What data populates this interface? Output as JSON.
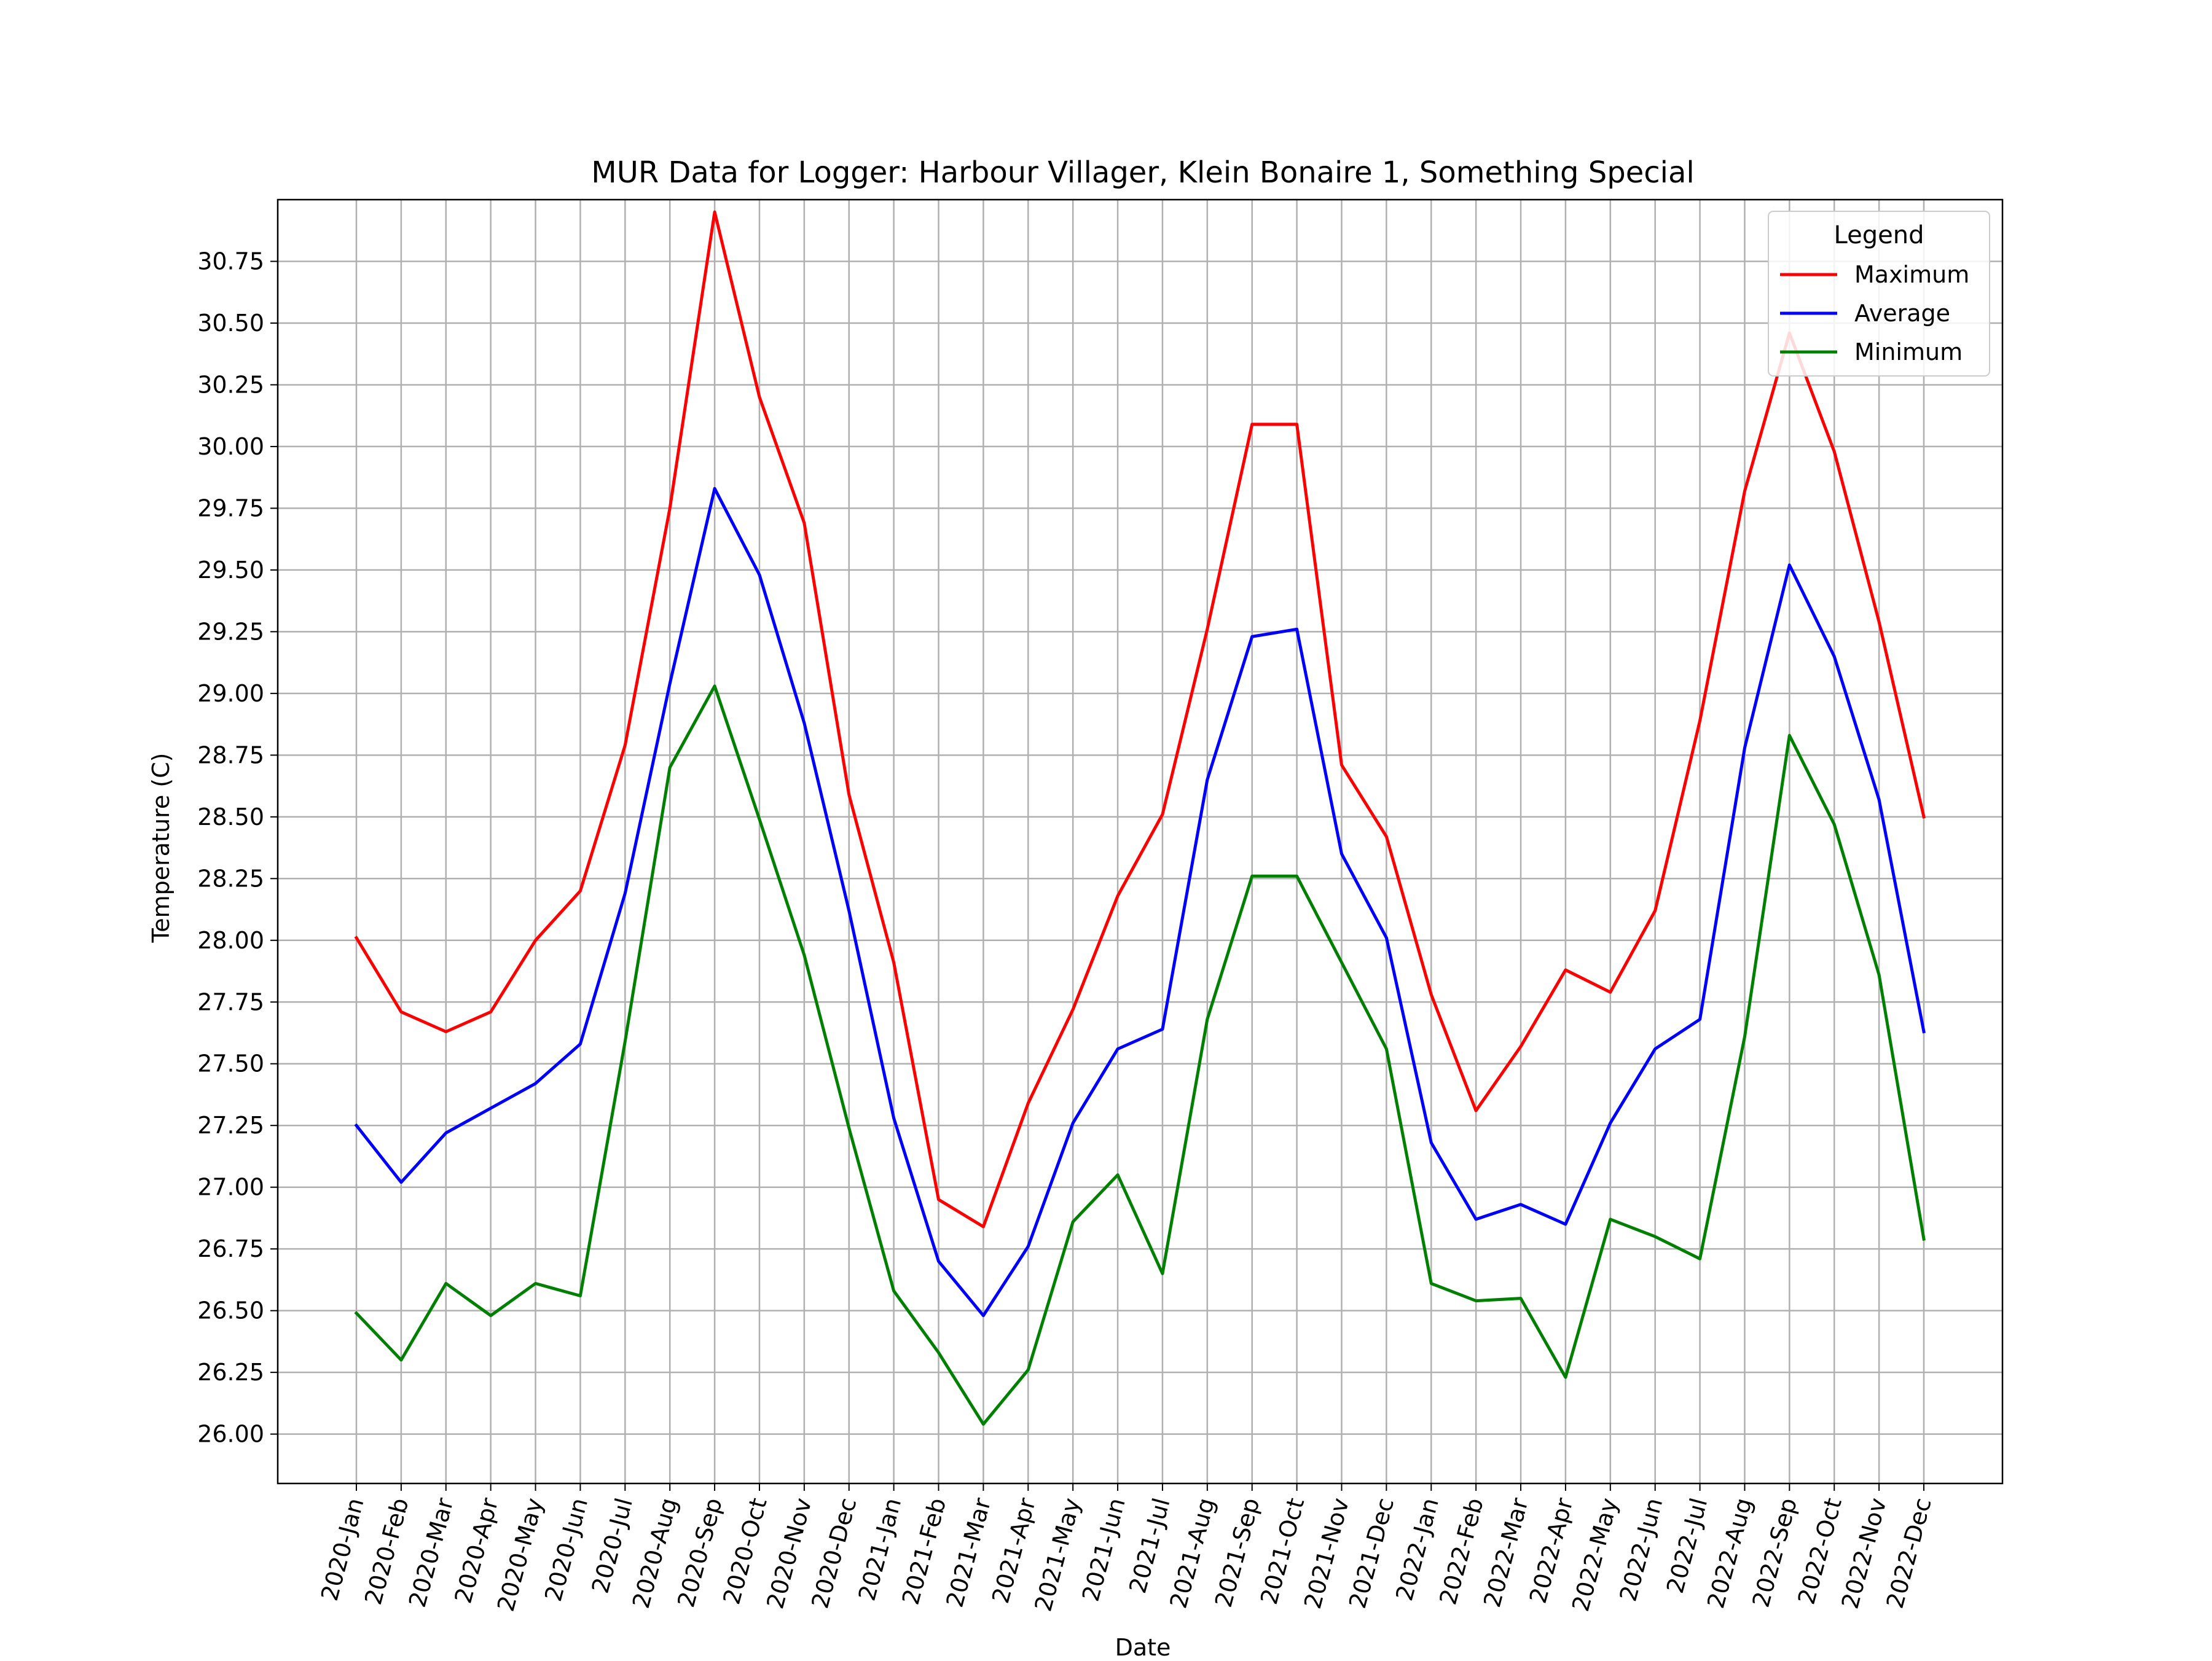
{
  "chart_data": {
    "type": "line",
    "title": "MUR Data for Logger: Harbour Villager, Klein Bonaire 1, Something Special",
    "xlabel": "Date",
    "ylabel": "Temperature (C)",
    "ylim": [
      25.8,
      31.0
    ],
    "yticks": [
      "26.00",
      "26.25",
      "26.50",
      "26.75",
      "27.00",
      "27.25",
      "27.50",
      "27.75",
      "28.00",
      "28.25",
      "28.50",
      "28.75",
      "29.00",
      "29.25",
      "29.50",
      "29.75",
      "30.00",
      "30.25",
      "30.50",
      "30.75"
    ],
    "grid": true,
    "legend": {
      "title": "Legend",
      "placement": "upper-right"
    },
    "categories": [
      "2020-Jan",
      "2020-Feb",
      "2020-Mar",
      "2020-Apr",
      "2020-May",
      "2020-Jun",
      "2020-Jul",
      "2020-Aug",
      "2020-Sep",
      "2020-Oct",
      "2020-Nov",
      "2020-Dec",
      "2021-Jan",
      "2021-Feb",
      "2021-Mar",
      "2021-Apr",
      "2021-May",
      "2021-Jun",
      "2021-Jul",
      "2021-Aug",
      "2021-Sep",
      "2021-Oct",
      "2021-Nov",
      "2021-Dec",
      "2022-Jan",
      "2022-Feb",
      "2022-Mar",
      "2022-Apr",
      "2022-May",
      "2022-Jun",
      "2022-Jul",
      "2022-Aug",
      "2022-Sep",
      "2022-Oct",
      "2022-Nov",
      "2022-Dec"
    ],
    "series": [
      {
        "name": "Maximum",
        "color": "#ff0000",
        "values": [
          28.01,
          27.71,
          27.63,
          27.71,
          28.0,
          28.2,
          28.79,
          29.75,
          30.95,
          30.2,
          29.69,
          28.59,
          27.91,
          26.95,
          26.84,
          27.34,
          27.72,
          28.18,
          28.51,
          29.26,
          30.09,
          30.09,
          28.71,
          28.42,
          27.78,
          27.31,
          27.57,
          27.88,
          27.79,
          28.12,
          28.89,
          29.82,
          30.46,
          29.98,
          29.29,
          28.5
        ]
      },
      {
        "name": "Average",
        "color": "#0000ff",
        "values": [
          27.25,
          27.02,
          27.22,
          27.32,
          27.42,
          27.58,
          28.19,
          29.04,
          29.83,
          29.48,
          28.88,
          28.12,
          27.28,
          26.7,
          26.48,
          26.76,
          27.26,
          27.56,
          27.64,
          28.65,
          29.23,
          29.26,
          28.35,
          28.01,
          27.18,
          26.87,
          26.93,
          26.85,
          27.26,
          27.56,
          27.68,
          28.78,
          29.52,
          29.15,
          28.57,
          27.63
        ]
      },
      {
        "name": "Minimum",
        "color": "#008000",
        "values": [
          26.49,
          26.3,
          26.61,
          26.48,
          26.61,
          26.56,
          27.59,
          28.7,
          29.03,
          28.49,
          27.94,
          27.24,
          26.58,
          26.33,
          26.04,
          26.26,
          26.86,
          27.05,
          26.65,
          27.68,
          28.26,
          28.26,
          27.91,
          27.56,
          26.61,
          26.54,
          26.55,
          26.23,
          26.87,
          26.8,
          26.71,
          27.61,
          28.83,
          28.47,
          27.86,
          26.79
        ]
      }
    ]
  }
}
